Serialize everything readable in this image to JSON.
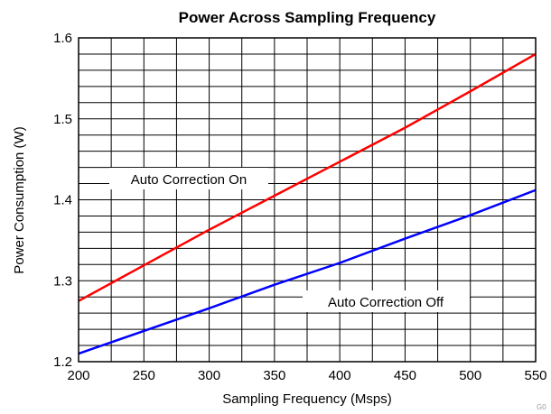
{
  "chart_data": {
    "type": "line",
    "title": "Power Across Sampling Frequency",
    "xlabel": "Sampling Frequency (Msps)",
    "ylabel": "Power Consumption (W)",
    "xlim": [
      200,
      550
    ],
    "ylim": [
      1.2,
      1.6
    ],
    "x_ticks": [
      "200",
      "250",
      "300",
      "350",
      "400",
      "450",
      "500",
      "550"
    ],
    "y_ticks": [
      "1.2",
      "1.3",
      "1.4",
      "1.5",
      "1.6"
    ],
    "grid": true,
    "series": [
      {
        "name": "Auto Correction On",
        "color": "#ff0000",
        "x": [
          200,
          250,
          300,
          350,
          400,
          450,
          500,
          550
        ],
        "values": [
          1.275,
          1.319,
          1.363,
          1.405,
          1.447,
          1.489,
          1.534,
          1.58
        ]
      },
      {
        "name": "Auto Correction Off",
        "color": "#0000ff",
        "x": [
          200,
          250,
          300,
          350,
          400,
          450,
          500,
          550
        ],
        "values": [
          1.21,
          1.238,
          1.266,
          1.295,
          1.322,
          1.352,
          1.381,
          1.412
        ]
      }
    ],
    "annotations": [
      "Auto Correction On",
      "Auto Correction Off"
    ],
    "watermark": "G0"
  }
}
